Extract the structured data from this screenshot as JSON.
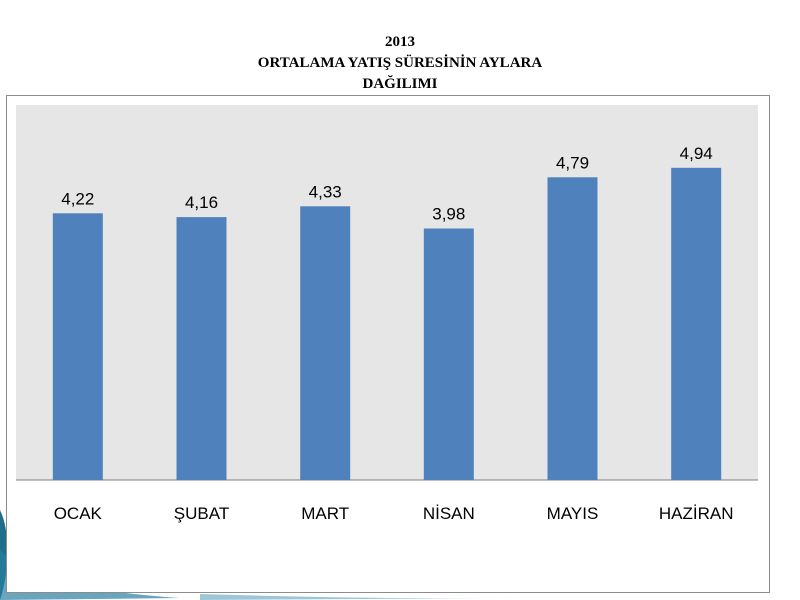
{
  "title": {
    "line1": "2013",
    "line2": "ORTALAMA YATIŞ SÜRESİNİN AYLARA",
    "line3": "DAĞILIMI"
  },
  "colors": {
    "bar": "#4f81bd",
    "plot_bg": "#e6e6e6",
    "axis": "#7f7f7f",
    "text": "#000000"
  },
  "chart_data": {
    "type": "bar",
    "title": "2013 ORTALAMA YATIŞ SÜRESİNİN AYLARA DAĞILIMI",
    "categories": [
      "OCAK",
      "ŞUBAT",
      "MART",
      "NİSAN",
      "MAYIS",
      "HAZİRAN"
    ],
    "values": [
      4.22,
      4.16,
      4.33,
      3.98,
      4.79,
      4.94
    ],
    "value_labels": [
      "4,22",
      "4,16",
      "4,33",
      "3,98",
      "4,79",
      "4,94"
    ],
    "xlabel": "",
    "ylabel": "",
    "ylim": [
      0,
      6
    ],
    "grid": false,
    "legend": "none"
  }
}
